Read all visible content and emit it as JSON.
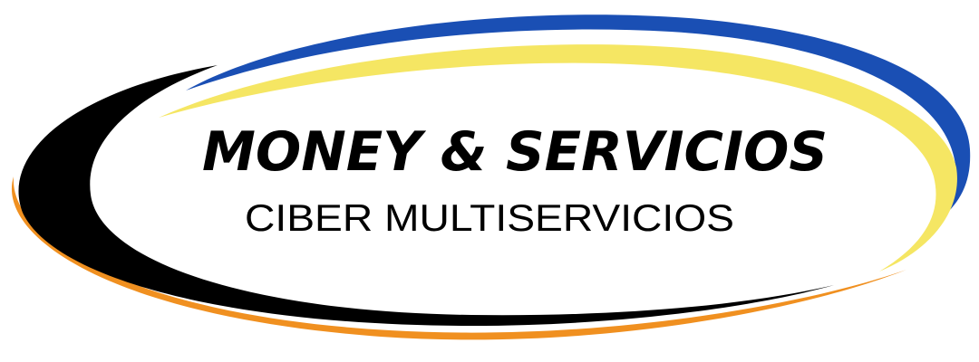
{
  "logo": {
    "title": "MONEY & SERVICIOS",
    "subtitle": "CIBER MULTISERVICIOS",
    "colors": {
      "blue": "#1a4fb4",
      "yellow": "#f5e663",
      "black": "#000000",
      "orange": "#f09020",
      "background": "#ffffff",
      "text": "#000000"
    }
  }
}
